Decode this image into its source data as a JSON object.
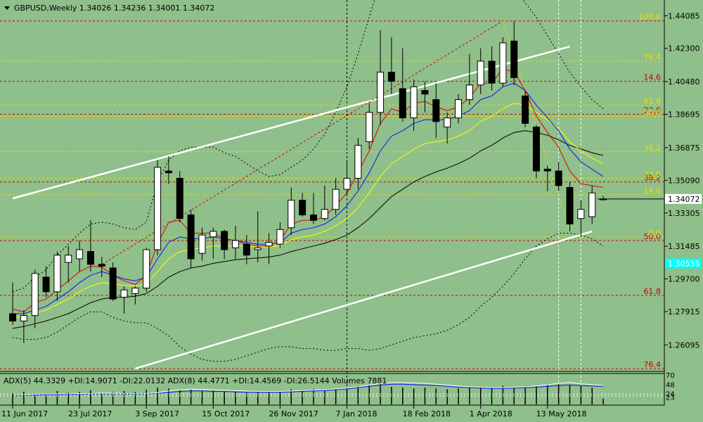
{
  "header": {
    "title": "GBPUSD,Weekly  1.34026 1.34236 1.34001 1.34072",
    "indicator_text": "ADX(5) 44.3329 +DI:14.9071 -DI:22.0132  ADX(8) 44.4771 +DI:14.4569 -DI:26.5144  Volumes 7881"
  },
  "colors": {
    "background": "#8fbf8a",
    "bull": "#ffffff",
    "bear": "#000000",
    "ma_red": "#e00000",
    "ma_blue": "#1010ff",
    "ma_yellow": "#ffff00",
    "ma_black": "#000000",
    "fib_level": "#cc0000",
    "fib_yellow": "#e8e000",
    "cyan_level": "#00ffff",
    "current_price_box": "#ffffff"
  },
  "chart_data": {
    "type": "candlestick",
    "symbol": "GBPUSD",
    "timeframe": "Weekly",
    "ylim": [
      1.2465,
      1.4475
    ],
    "y_ticks": [
      "1.44085",
      "1.42300",
      "1.40480",
      "1.38695",
      "1.36875",
      "1.35090",
      "1.33305",
      "1.31485",
      "1.29700",
      "1.27915",
      "1.26095"
    ],
    "x_labels": [
      {
        "label": "11 Jun 2017",
        "index": 0
      },
      {
        "label": "23 Jul 2017",
        "index": 6
      },
      {
        "label": "3 Sep 2017",
        "index": 12
      },
      {
        "label": "15 Oct 2017",
        "index": 18
      },
      {
        "label": "26 Nov 2017",
        "index": 24
      },
      {
        "label": "7 Jan 2018",
        "index": 30
      },
      {
        "label": "18 Feb 2018",
        "index": 36
      },
      {
        "label": "1 Apr 2018",
        "index": 42
      },
      {
        "label": "13 May 2018",
        "index": 48
      }
    ],
    "candles": [
      {
        "o": 1.278,
        "h": 1.295,
        "l": 1.272,
        "c": 1.274
      },
      {
        "o": 1.274,
        "h": 1.28,
        "l": 1.262,
        "c": 1.277
      },
      {
        "o": 1.277,
        "h": 1.302,
        "l": 1.27,
        "c": 1.3
      },
      {
        "o": 1.298,
        "h": 1.304,
        "l": 1.287,
        "c": 1.29
      },
      {
        "o": 1.29,
        "h": 1.312,
        "l": 1.285,
        "c": 1.31
      },
      {
        "o": 1.306,
        "h": 1.315,
        "l": 1.295,
        "c": 1.31
      },
      {
        "o": 1.308,
        "h": 1.318,
        "l": 1.301,
        "c": 1.313
      },
      {
        "o": 1.312,
        "h": 1.329,
        "l": 1.301,
        "c": 1.305
      },
      {
        "o": 1.305,
        "h": 1.309,
        "l": 1.298,
        "c": 1.304
      },
      {
        "o": 1.303,
        "h": 1.306,
        "l": 1.285,
        "c": 1.286
      },
      {
        "o": 1.287,
        "h": 1.293,
        "l": 1.278,
        "c": 1.291
      },
      {
        "o": 1.289,
        "h": 1.293,
        "l": 1.283,
        "c": 1.292
      },
      {
        "o": 1.292,
        "h": 1.314,
        "l": 1.29,
        "c": 1.313
      },
      {
        "o": 1.313,
        "h": 1.362,
        "l": 1.31,
        "c": 1.358
      },
      {
        "o": 1.356,
        "h": 1.364,
        "l": 1.349,
        "c": 1.355
      },
      {
        "o": 1.352,
        "h": 1.356,
        "l": 1.328,
        "c": 1.33
      },
      {
        "o": 1.332,
        "h": 1.335,
        "l": 1.303,
        "c": 1.308
      },
      {
        "o": 1.311,
        "h": 1.325,
        "l": 1.307,
        "c": 1.321
      },
      {
        "o": 1.32,
        "h": 1.325,
        "l": 1.308,
        "c": 1.323
      },
      {
        "o": 1.323,
        "h": 1.324,
        "l": 1.308,
        "c": 1.313
      },
      {
        "o": 1.314,
        "h": 1.326,
        "l": 1.308,
        "c": 1.318
      },
      {
        "o": 1.316,
        "h": 1.321,
        "l": 1.305,
        "c": 1.31
      },
      {
        "o": 1.313,
        "h": 1.334,
        "l": 1.306,
        "c": 1.314
      },
      {
        "o": 1.315,
        "h": 1.322,
        "l": 1.305,
        "c": 1.317
      },
      {
        "o": 1.316,
        "h": 1.328,
        "l": 1.314,
        "c": 1.324
      },
      {
        "o": 1.325,
        "h": 1.347,
        "l": 1.321,
        "c": 1.34
      },
      {
        "o": 1.34,
        "h": 1.344,
        "l": 1.331,
        "c": 1.332
      },
      {
        "o": 1.332,
        "h": 1.344,
        "l": 1.327,
        "c": 1.329
      },
      {
        "o": 1.33,
        "h": 1.348,
        "l": 1.329,
        "c": 1.335
      },
      {
        "o": 1.335,
        "h": 1.352,
        "l": 1.332,
        "c": 1.346
      },
      {
        "o": 1.346,
        "h": 1.362,
        "l": 1.343,
        "c": 1.352
      },
      {
        "o": 1.352,
        "h": 1.374,
        "l": 1.346,
        "c": 1.37
      },
      {
        "o": 1.372,
        "h": 1.393,
        "l": 1.368,
        "c": 1.388
      },
      {
        "o": 1.388,
        "h": 1.433,
        "l": 1.381,
        "c": 1.41
      },
      {
        "o": 1.41,
        "h": 1.429,
        "l": 1.398,
        "c": 1.405
      },
      {
        "o": 1.401,
        "h": 1.423,
        "l": 1.383,
        "c": 1.385
      },
      {
        "o": 1.385,
        "h": 1.406,
        "l": 1.378,
        "c": 1.402
      },
      {
        "o": 1.4,
        "h": 1.405,
        "l": 1.388,
        "c": 1.398
      },
      {
        "o": 1.395,
        "h": 1.404,
        "l": 1.374,
        "c": 1.383
      },
      {
        "o": 1.38,
        "h": 1.388,
        "l": 1.371,
        "c": 1.385
      },
      {
        "o": 1.385,
        "h": 1.398,
        "l": 1.382,
        "c": 1.395
      },
      {
        "o": 1.395,
        "h": 1.42,
        "l": 1.392,
        "c": 1.403
      },
      {
        "o": 1.403,
        "h": 1.423,
        "l": 1.398,
        "c": 1.416
      },
      {
        "o": 1.416,
        "h": 1.424,
        "l": 1.4,
        "c": 1.404
      },
      {
        "o": 1.404,
        "h": 1.429,
        "l": 1.402,
        "c": 1.426
      },
      {
        "o": 1.427,
        "h": 1.438,
        "l": 1.403,
        "c": 1.407
      },
      {
        "o": 1.397,
        "h": 1.4,
        "l": 1.38,
        "c": 1.382
      },
      {
        "o": 1.38,
        "h": 1.381,
        "l": 1.352,
        "c": 1.356
      },
      {
        "o": 1.357,
        "h": 1.359,
        "l": 1.345,
        "c": 1.356
      },
      {
        "o": 1.356,
        "h": 1.361,
        "l": 1.345,
        "c": 1.348
      },
      {
        "o": 1.347,
        "h": 1.35,
        "l": 1.323,
        "c": 1.327
      },
      {
        "o": 1.33,
        "h": 1.34,
        "l": 1.32,
        "c": 1.335
      },
      {
        "o": 1.331,
        "h": 1.348,
        "l": 1.327,
        "c": 1.344
      },
      {
        "o": 1.34026,
        "h": 1.34236,
        "l": 1.34001,
        "c": 1.34072
      }
    ],
    "ma_red": [
      1.2805,
      1.279,
      1.284,
      1.286,
      1.291,
      1.296,
      1.301,
      1.304,
      1.3035,
      1.299,
      1.296,
      1.294,
      1.299,
      1.316,
      1.328,
      1.329,
      1.322,
      1.322,
      1.322,
      1.319,
      1.318,
      1.316,
      1.315,
      1.315,
      1.318,
      1.327,
      1.329,
      1.329,
      1.331,
      1.337,
      1.344,
      1.355,
      1.367,
      1.382,
      1.39,
      1.388,
      1.393,
      1.394,
      1.391,
      1.389,
      1.391,
      1.396,
      1.404,
      1.404,
      1.412,
      1.41,
      1.4,
      1.386,
      1.377,
      1.369,
      1.356,
      1.349,
      1.348,
      1.347
    ],
    "ma_blue": [
      1.278,
      1.278,
      1.28,
      1.282,
      1.286,
      1.29,
      1.295,
      1.299,
      1.301,
      1.299,
      1.297,
      1.296,
      1.298,
      1.308,
      1.317,
      1.32,
      1.319,
      1.319,
      1.32,
      1.319,
      1.318,
      1.317,
      1.316,
      1.316,
      1.317,
      1.322,
      1.324,
      1.325,
      1.327,
      1.331,
      1.337,
      1.345,
      1.355,
      1.367,
      1.375,
      1.378,
      1.382,
      1.384,
      1.384,
      1.384,
      1.386,
      1.389,
      1.395,
      1.397,
      1.402,
      1.404,
      1.4,
      1.392,
      1.385,
      1.378,
      1.368,
      1.361,
      1.357,
      1.353
    ],
    "ma_yellow": [
      1.276,
      1.2765,
      1.278,
      1.28,
      1.283,
      1.286,
      1.29,
      1.293,
      1.295,
      1.2945,
      1.2935,
      1.293,
      1.2945,
      1.301,
      1.308,
      1.312,
      1.313,
      1.314,
      1.315,
      1.315,
      1.315,
      1.315,
      1.3145,
      1.3145,
      1.315,
      1.3185,
      1.32,
      1.321,
      1.323,
      1.326,
      1.33,
      1.336,
      1.344,
      1.353,
      1.36,
      1.364,
      1.368,
      1.371,
      1.372,
      1.373,
      1.375,
      1.378,
      1.383,
      1.386,
      1.39,
      1.393,
      1.392,
      1.388,
      1.384,
      1.379,
      1.372,
      1.367,
      1.363,
      1.36
    ],
    "ma_black": [
      1.27,
      1.271,
      1.2725,
      1.274,
      1.276,
      1.278,
      1.281,
      1.284,
      1.286,
      1.287,
      1.287,
      1.2875,
      1.289,
      1.293,
      1.298,
      1.301,
      1.303,
      1.304,
      1.3055,
      1.3065,
      1.3075,
      1.308,
      1.3085,
      1.309,
      1.31,
      1.312,
      1.3135,
      1.315,
      1.3165,
      1.3185,
      1.321,
      1.325,
      1.33,
      1.336,
      1.342,
      1.346,
      1.35,
      1.353,
      1.3555,
      1.3575,
      1.36,
      1.363,
      1.367,
      1.37,
      1.374,
      1.377,
      1.378,
      1.377,
      1.3755,
      1.373,
      1.37,
      1.368,
      1.366,
      1.3645
    ],
    "bb_upper": [
      1.29,
      1.292,
      1.298,
      1.302,
      1.31,
      1.316,
      1.322,
      1.327,
      1.328,
      1.327,
      1.325,
      1.324,
      1.328,
      1.35,
      1.362,
      1.367,
      1.369,
      1.369,
      1.369,
      1.366,
      1.364,
      1.36,
      1.356,
      1.353,
      1.354,
      1.358,
      1.362,
      1.368,
      1.376,
      1.388,
      1.402,
      1.42,
      1.44,
      1.46,
      1.47,
      1.472,
      1.476,
      1.479,
      1.48,
      1.481,
      1.48,
      1.478,
      1.476,
      1.47,
      1.464,
      1.456,
      1.448,
      1.44,
      1.43,
      1.42,
      1.41,
      1.402,
      1.395,
      1.39
    ],
    "bb_lower": [
      1.265,
      1.264,
      1.264,
      1.265,
      1.268,
      1.272,
      1.276,
      1.279,
      1.279,
      1.276,
      1.274,
      1.273,
      1.273,
      1.27,
      1.266,
      1.26,
      1.256,
      1.253,
      1.252,
      1.252,
      1.253,
      1.255,
      1.257,
      1.259,
      1.26,
      1.26,
      1.259,
      1.259,
      1.258,
      1.258,
      1.259,
      1.259,
      1.258,
      1.259,
      1.261,
      1.263,
      1.265,
      1.266,
      1.267,
      1.269,
      1.272,
      1.276,
      1.282,
      1.287,
      1.293,
      1.3,
      1.308,
      1.315,
      1.319,
      1.322,
      1.322,
      1.321,
      1.319,
      1.315
    ],
    "levels": [
      {
        "price": 1.438,
        "color": "fib_level",
        "label": "100.0",
        "label_color": "fib_yellow"
      },
      {
        "price": 1.405,
        "color": "fib_level",
        "label": "14.6",
        "label_color": "fib_level"
      },
      {
        "price": 1.387,
        "color": "fib_level",
        "label": "23.6",
        "label_color": "fib_level"
      },
      {
        "price": 1.35,
        "color": "fib_level",
        "label": "38.2",
        "label_color": "fib_level"
      },
      {
        "price": 1.318,
        "color": "fib_level",
        "label": "50.0",
        "label_color": "fib_level"
      },
      {
        "price": 1.288,
        "color": "fib_level",
        "label": "61.8",
        "label_color": "fib_level"
      },
      {
        "price": 1.248,
        "color": "fib_level",
        "label": "76.4",
        "label_color": "fib_level"
      },
      {
        "price": 1.3858,
        "color": "fib_yellow",
        "label": "50.0",
        "label_color": "fib_yellow"
      },
      {
        "price": 1.416,
        "color": "fib_yellow",
        "label": "76.4",
        "label_color": "fib_yellow"
      },
      {
        "price": 1.392,
        "color": "fib_yellow",
        "label": "61.8",
        "label_color": "fib_yellow"
      },
      {
        "price": 1.3665,
        "color": "fib_yellow",
        "label": "38.2",
        "label_color": "fib_yellow"
      },
      {
        "price": 1.352,
        "color": "fib_yellow",
        "label": "23.6",
        "label_color": "fib_yellow"
      },
      {
        "price": 1.343,
        "color": "fib_yellow",
        "label": "14.6",
        "label_color": "fib_yellow"
      },
      {
        "price": 1.32,
        "color": "fib_yellow",
        "label": "0.0",
        "label_color": "fib_yellow"
      }
    ],
    "cyan_level": {
      "price": 1.3055,
      "label": "1.30555"
    },
    "current_price": {
      "price": 1.34072,
      "label": "1.34072"
    },
    "channel_upper": [
      {
        "i": 0,
        "p": 1.341
      },
      {
        "i": 50,
        "p": 1.424
      }
    ],
    "channel_lower": [
      {
        "i": 11,
        "p": 1.248
      },
      {
        "i": 52,
        "p": 1.323
      }
    ],
    "red_trend": [
      {
        "i": 8,
        "p": 1.305
      },
      {
        "i": 44,
        "p": 1.438
      }
    ],
    "yellow_trend": [
      {
        "i": 44,
        "p": 1.438
      },
      {
        "i": 50,
        "p": 1.323
      }
    ],
    "vlines": [
      30,
      49,
      51
    ],
    "adx": {
      "sub_ticks": [
        "70",
        "48",
        "24",
        "23"
      ],
      "line_white": [
        20,
        22,
        23,
        24,
        25,
        25,
        26,
        26,
        27,
        27,
        26,
        26,
        26,
        28,
        32,
        35,
        36,
        36,
        35,
        34,
        33,
        32,
        31,
        31,
        31,
        32,
        33,
        34,
        35,
        37,
        39,
        42,
        46,
        50,
        52,
        52,
        51,
        50,
        48,
        46,
        44,
        42,
        41,
        40,
        40,
        41,
        42,
        44,
        47,
        50,
        52,
        49,
        47,
        45
      ],
      "line_blue": [
        20,
        21,
        22,
        23,
        23,
        24,
        24,
        25,
        25,
        25,
        25,
        25,
        25,
        26,
        29,
        31,
        32,
        32,
        31,
        31,
        30,
        29,
        29,
        29,
        29,
        30,
        31,
        32,
        33,
        35,
        37,
        40,
        43,
        46,
        48,
        48,
        47,
        46,
        45,
        43,
        41,
        40,
        39,
        38,
        38,
        39,
        40,
        41,
        43,
        45,
        46,
        45,
        44,
        43
      ],
      "volume": [
        26,
        30,
        24,
        22,
        32,
        28,
        30,
        34,
        28,
        30,
        32,
        30,
        35,
        40,
        38,
        34,
        36,
        32,
        33,
        30,
        31,
        29,
        30,
        28,
        32,
        36,
        34,
        36,
        33,
        38,
        40,
        44,
        46,
        48,
        42,
        40,
        38,
        40,
        38,
        36,
        38,
        40,
        42,
        40,
        44,
        42,
        42,
        44,
        46,
        48,
        46,
        44,
        40,
        14
      ]
    }
  }
}
